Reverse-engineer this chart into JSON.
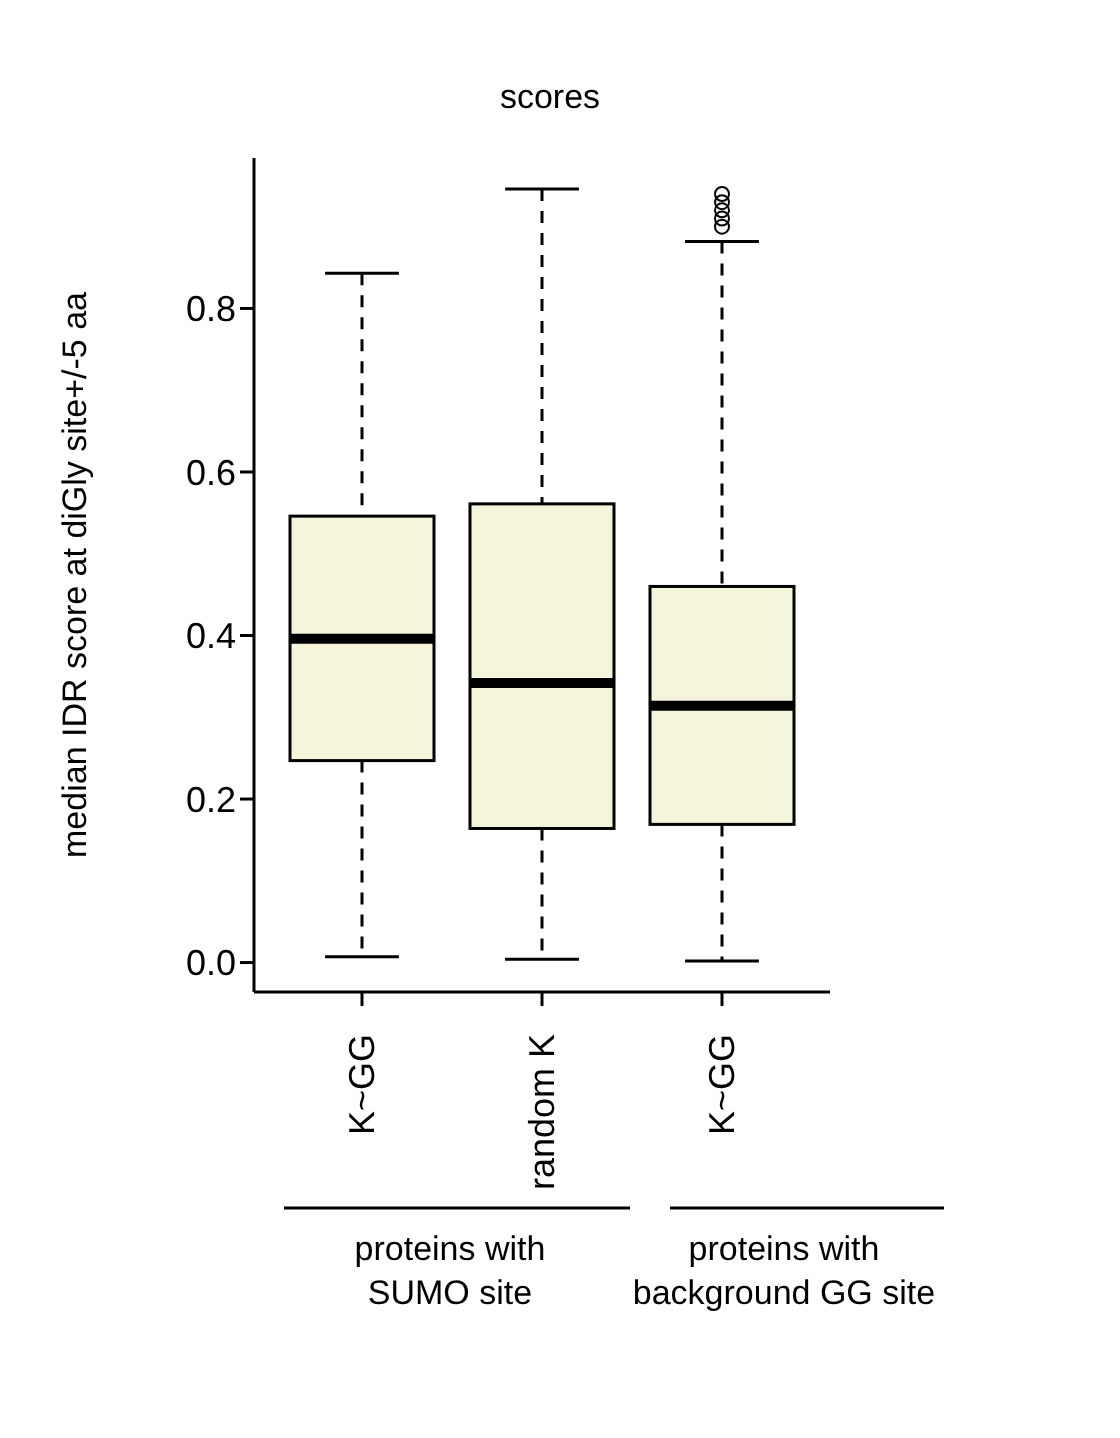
{
  "chart_data": {
    "type": "box",
    "title": "scores",
    "ylabel": "median IDR score at diGly site+/-5 aa",
    "categories": [
      "K~GG",
      "random K",
      "K~GG"
    ],
    "color": "#f5f5dc",
    "boxes": [
      {
        "low": 0.007,
        "q1": 0.247,
        "median": 0.396,
        "q3": 0.546,
        "high": 0.843
      },
      {
        "low": 0.004,
        "q1": 0.164,
        "median": 0.342,
        "q3": 0.561,
        "high": 0.946
      },
      {
        "low": 0.002,
        "q1": 0.169,
        "median": 0.314,
        "q3": 0.46,
        "high": 0.882,
        "outliers": [
          0.9,
          0.91,
          0.92,
          0.93,
          0.94
        ]
      }
    ],
    "ylim": [
      -0.036,
      0.984
    ],
    "yticks": [
      {
        "value": 0,
        "label": "0.0"
      },
      {
        "value": 0.2,
        "label": "0.2"
      },
      {
        "value": 0.4,
        "label": "0.4"
      },
      {
        "value": 0.6,
        "label": "0.6"
      },
      {
        "value": 0.8,
        "label": "0.8"
      }
    ],
    "annotations": [
      "proteins with\nSUMO site",
      "proteins with\nbackground GG site"
    ],
    "grid": false,
    "legend": false
  }
}
